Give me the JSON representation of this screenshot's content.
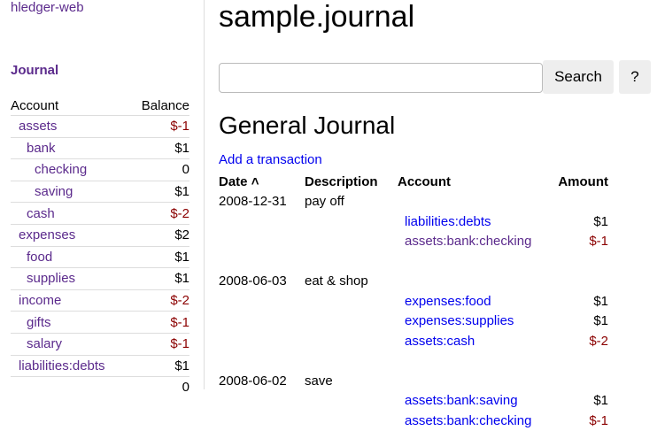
{
  "brand": "hledger-web",
  "sidebar": {
    "journal_link": "Journal",
    "col_account": "Account",
    "col_balance": "Balance",
    "rows": [
      {
        "name": "assets",
        "indent": 0,
        "balance": "$-1",
        "neg": true
      },
      {
        "name": "bank",
        "indent": 1,
        "balance": "$1",
        "neg": false
      },
      {
        "name": "checking",
        "indent": 2,
        "balance": "0",
        "neg": false
      },
      {
        "name": "saving",
        "indent": 2,
        "balance": "$1",
        "neg": false
      },
      {
        "name": "cash",
        "indent": 1,
        "balance": "$-2",
        "neg": true
      },
      {
        "name": "expenses",
        "indent": 0,
        "balance": "$2",
        "neg": false
      },
      {
        "name": "food",
        "indent": 1,
        "balance": "$1",
        "neg": false
      },
      {
        "name": "supplies",
        "indent": 1,
        "balance": "$1",
        "neg": false
      },
      {
        "name": "income",
        "indent": 0,
        "balance": "$-2",
        "neg": true
      },
      {
        "name": "gifts",
        "indent": 1,
        "balance": "$-1",
        "neg": true
      },
      {
        "name": "salary",
        "indent": 1,
        "balance": "$-1",
        "neg": true
      },
      {
        "name": "liabilities:debts",
        "indent": 0,
        "balance": "$1",
        "neg": false
      }
    ],
    "total": "0"
  },
  "main": {
    "title": "sample.journal",
    "search_value": "",
    "search_button": "Search",
    "help_button": "?",
    "heading": "General Journal",
    "add_link": "Add a transaction",
    "columns": {
      "date": "Date",
      "description": "Description",
      "account": "Account",
      "amount": "Amount"
    },
    "sort_icon": "chevron-up-icon",
    "transactions": [
      {
        "date": "2008-12-31",
        "description": "pay off",
        "postings": [
          {
            "account": "liabilities:debts",
            "amount": "$1",
            "neg": false,
            "visited": false
          },
          {
            "account": "assets:bank:checking",
            "amount": "$-1",
            "neg": true,
            "visited": true
          }
        ]
      },
      {
        "date": "2008-06-03",
        "description": "eat & shop",
        "postings": [
          {
            "account": "expenses:food",
            "amount": "$1",
            "neg": false,
            "visited": false
          },
          {
            "account": "expenses:supplies",
            "amount": "$1",
            "neg": false,
            "visited": false
          },
          {
            "account": "assets:cash",
            "amount": "$-2",
            "neg": true,
            "visited": false
          }
        ]
      },
      {
        "date": "2008-06-02",
        "description": "save",
        "postings": [
          {
            "account": "assets:bank:saving",
            "amount": "$1",
            "neg": false,
            "visited": false
          },
          {
            "account": "assets:bank:checking",
            "amount": "$-1",
            "neg": true,
            "visited": false
          }
        ]
      }
    ]
  },
  "colors": {
    "visited": "#5b2a8c",
    "link": "#0000ee",
    "negative": "#8b0000"
  }
}
